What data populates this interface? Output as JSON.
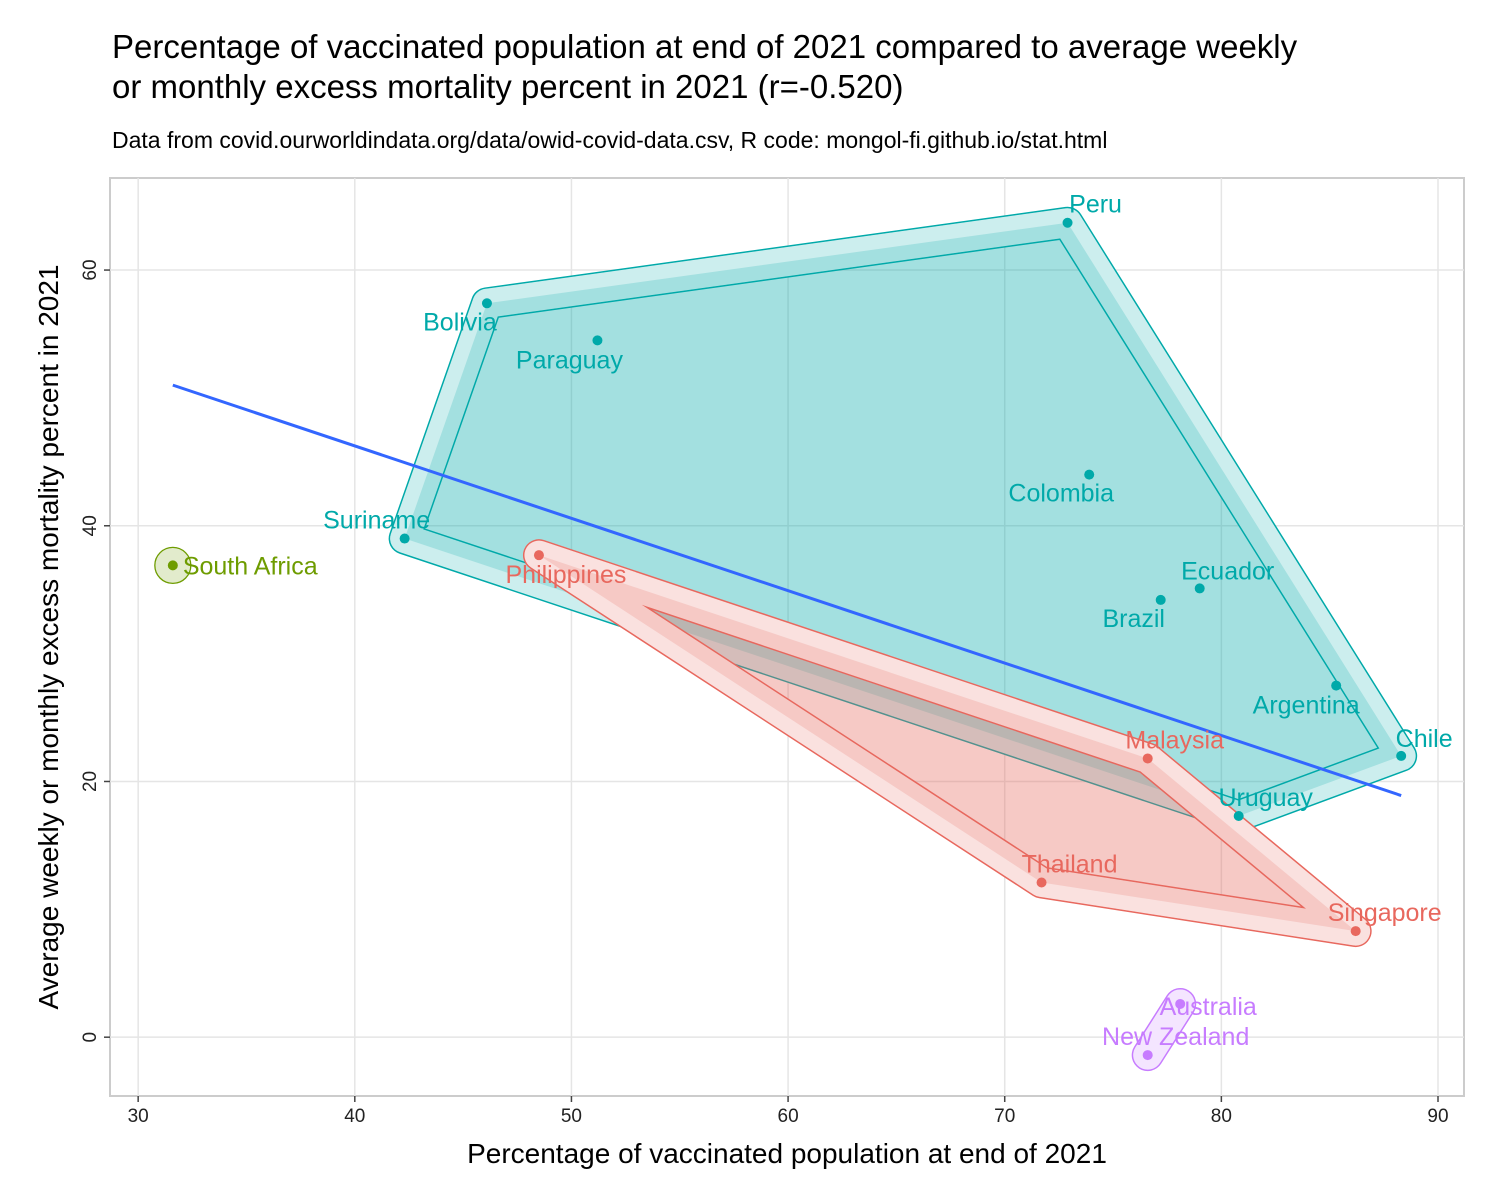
{
  "chart_data": {
    "type": "scatter",
    "title": [
      "Percentage of vaccinated population at end of 2021 compared to average weekly",
      "or monthly excess mortality percent in 2021 (r=-0.520)"
    ],
    "subtitle": "Data from covid.ourworldindata.org/data/owid-covid-data.csv, R code: mongol-fi.github.io/stat.html",
    "xlabel": "Percentage of vaccinated population at end of 2021",
    "ylabel": "Average weekly or monthly excess mortality percent in 2021",
    "xlim": [
      28.7,
      91.2
    ],
    "ylim": [
      -4.6,
      67.2
    ],
    "xticks": [
      30,
      40,
      50,
      60,
      70,
      80,
      90
    ],
    "yticks": [
      0,
      20,
      40,
      60
    ],
    "grid": true,
    "legend": "none",
    "regression_line": {
      "x": [
        31.6,
        88.3
      ],
      "y": [
        51.0,
        18.9
      ],
      "color": "#3366FF"
    },
    "groups": [
      {
        "color": "#00A9A9",
        "points": [
          {
            "label": "Peru",
            "x": 72.9,
            "y": 63.7
          },
          {
            "label": "Bolivia",
            "x": 46.1,
            "y": 57.4
          },
          {
            "label": "Paraguay",
            "x": 51.2,
            "y": 54.5
          },
          {
            "label": "Colombia",
            "x": 73.9,
            "y": 44.0
          },
          {
            "label": "Suriname",
            "x": 42.3,
            "y": 39.0
          },
          {
            "label": "Ecuador",
            "x": 79.0,
            "y": 35.1
          },
          {
            "label": "Brazil",
            "x": 77.2,
            "y": 34.2
          },
          {
            "label": "Argentina",
            "x": 85.3,
            "y": 27.5
          },
          {
            "label": "Chile",
            "x": 88.3,
            "y": 22.0
          },
          {
            "label": "Uruguay",
            "x": 80.8,
            "y": 17.3
          }
        ]
      },
      {
        "color": "#E8685E",
        "points": [
          {
            "label": "Philippines",
            "x": 48.5,
            "y": 37.7
          },
          {
            "label": "Malaysia",
            "x": 76.6,
            "y": 21.8
          },
          {
            "label": "Thailand",
            "x": 71.7,
            "y": 12.1
          },
          {
            "label": "Singapore",
            "x": 86.2,
            "y": 8.3
          }
        ]
      },
      {
        "color": "#6E9C00",
        "points": [
          {
            "label": "South Africa",
            "x": 31.6,
            "y": 36.9
          }
        ]
      },
      {
        "color": "#C77CFF",
        "points": [
          {
            "label": "Australia",
            "x": 78.1,
            "y": 2.6
          },
          {
            "label": "New Zealand",
            "x": 76.6,
            "y": -1.4
          }
        ]
      }
    ]
  }
}
